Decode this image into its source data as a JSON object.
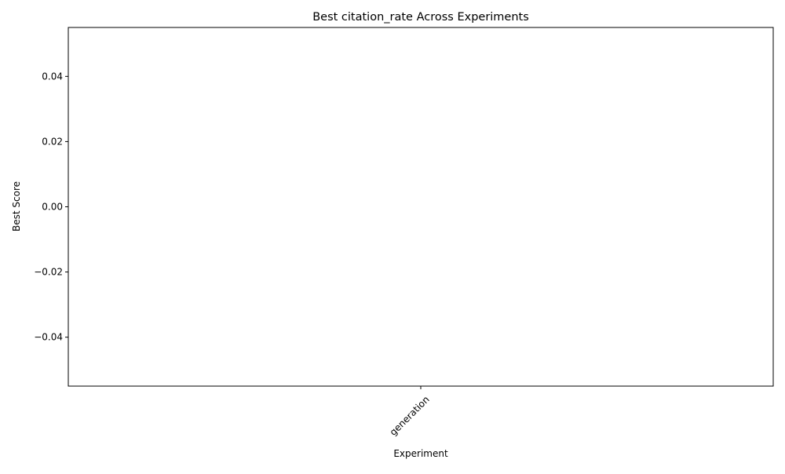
{
  "chart_data": {
    "type": "bar",
    "title": "Best citation_rate Across Experiments",
    "xlabel": "Experiment",
    "ylabel": "Best Score",
    "categories": [
      "generation"
    ],
    "values": [
      0.0
    ],
    "ylim": [
      -0.055,
      0.055
    ],
    "yticks": [
      -0.04,
      -0.02,
      0.0,
      0.02,
      0.04
    ],
    "ytick_labels": [
      "−0.04",
      "−0.02",
      "0.00",
      "0.02",
      "0.04"
    ],
    "xtick_rotation_deg": 45,
    "grid": false,
    "legend": "none"
  }
}
